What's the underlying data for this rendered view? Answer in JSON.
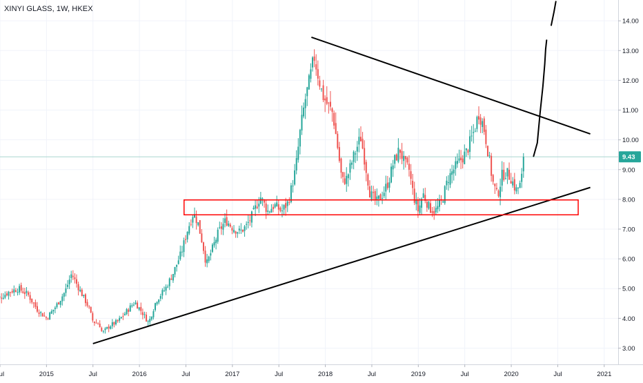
{
  "chart_data": {
    "type": "candlestick",
    "title": "XINYI GLASS, 1W, HKEX",
    "last_price_label": "9.43",
    "colors": {
      "up": "#26a69a",
      "down": "#ef5350",
      "grid": "#f0f3fa",
      "axis_text": "#131722",
      "price_line": "#a8d5cf",
      "price_tag": "#26a69a",
      "trendline": "#000000",
      "zone": "#ff0000"
    },
    "y_axis": {
      "min": 2.5,
      "max": 14.7,
      "ticks": [
        "3.00",
        "4.00",
        "5.00",
        "6.00",
        "7.00",
        "8.00",
        "9.00",
        "10.00",
        "11.00",
        "12.00",
        "13.00",
        "14.00"
      ],
      "tick_values": [
        3,
        4,
        5,
        6,
        7,
        8,
        9,
        10,
        11,
        12,
        13,
        14
      ]
    },
    "x_axis": {
      "min": 2014.5,
      "max": 2021.15,
      "ticks": [
        "Jul",
        "2015",
        "Jul",
        "2016",
        "Jul",
        "2017",
        "Jul",
        "2018",
        "Jul",
        "2019",
        "Jul",
        "2020",
        "Jul",
        "2021"
      ],
      "tick_values": [
        2014.5,
        2015,
        2015.5,
        2016,
        2016.5,
        2017,
        2017.5,
        2018,
        2018.5,
        2019,
        2019.5,
        2020,
        2020.5,
        2021
      ]
    },
    "series": [
      {
        "type": "candles",
        "interval": "1W",
        "close_path": [
          [
            2014.5,
            4.7
          ],
          [
            2014.6,
            4.9
          ],
          [
            2014.7,
            5.0
          ],
          [
            2014.8,
            4.8
          ],
          [
            2014.9,
            4.3
          ],
          [
            2015.0,
            4.0
          ],
          [
            2015.1,
            4.4
          ],
          [
            2015.2,
            4.9
          ],
          [
            2015.27,
            5.5
          ],
          [
            2015.35,
            5.0
          ],
          [
            2015.45,
            4.4
          ],
          [
            2015.5,
            3.9
          ],
          [
            2015.57,
            3.8
          ],
          [
            2015.6,
            3.5
          ],
          [
            2015.68,
            3.75
          ],
          [
            2015.77,
            3.9
          ],
          [
            2015.88,
            4.3
          ],
          [
            2015.95,
            4.55
          ],
          [
            2016.03,
            4.2
          ],
          [
            2016.1,
            3.85
          ],
          [
            2016.18,
            4.6
          ],
          [
            2016.28,
            5.0
          ],
          [
            2016.36,
            5.5
          ],
          [
            2016.45,
            6.2
          ],
          [
            2016.52,
            7.0
          ],
          [
            2016.58,
            7.55
          ],
          [
            2016.63,
            7.2
          ],
          [
            2016.68,
            6.5
          ],
          [
            2016.72,
            5.8
          ],
          [
            2016.78,
            6.3
          ],
          [
            2016.85,
            6.9
          ],
          [
            2016.93,
            7.3
          ],
          [
            2017.0,
            7.05
          ],
          [
            2017.08,
            6.9
          ],
          [
            2017.15,
            7.1
          ],
          [
            2017.22,
            7.5
          ],
          [
            2017.3,
            8.1
          ],
          [
            2017.38,
            7.6
          ],
          [
            2017.45,
            7.8
          ],
          [
            2017.53,
            7.6
          ],
          [
            2017.6,
            7.9
          ],
          [
            2017.68,
            9.0
          ],
          [
            2017.73,
            10.3
          ],
          [
            2017.78,
            11.3
          ],
          [
            2017.83,
            12.0
          ],
          [
            2017.88,
            12.8
          ],
          [
            2017.92,
            12.2
          ],
          [
            2017.97,
            11.5
          ],
          [
            2018.02,
            11.2
          ],
          [
            2018.08,
            10.9
          ],
          [
            2018.13,
            9.8
          ],
          [
            2018.18,
            8.6
          ],
          [
            2018.23,
            8.7
          ],
          [
            2018.3,
            9.4
          ],
          [
            2018.38,
            10.1
          ],
          [
            2018.43,
            9.2
          ],
          [
            2018.48,
            8.2
          ],
          [
            2018.55,
            7.9
          ],
          [
            2018.62,
            8.2
          ],
          [
            2018.68,
            8.6
          ],
          [
            2018.73,
            9.2
          ],
          [
            2018.8,
            9.7
          ],
          [
            2018.85,
            9.2
          ],
          [
            2018.9,
            9.0
          ],
          [
            2018.95,
            8.1
          ],
          [
            2019.0,
            7.6
          ],
          [
            2019.05,
            8.2
          ],
          [
            2019.12,
            7.7
          ],
          [
            2019.18,
            7.6
          ],
          [
            2019.25,
            7.9
          ],
          [
            2019.32,
            8.7
          ],
          [
            2019.38,
            9.0
          ],
          [
            2019.45,
            9.3
          ],
          [
            2019.52,
            9.6
          ],
          [
            2019.6,
            10.3
          ],
          [
            2019.65,
            10.9
          ],
          [
            2019.7,
            10.5
          ],
          [
            2019.74,
            9.8
          ],
          [
            2019.8,
            8.6
          ],
          [
            2019.85,
            8.1
          ],
          [
            2019.9,
            8.8
          ],
          [
            2019.95,
            8.9
          ],
          [
            2020.0,
            8.7
          ],
          [
            2020.05,
            8.3
          ],
          [
            2020.1,
            8.5
          ],
          [
            2020.15,
            9.43
          ]
        ]
      }
    ],
    "annotations": {
      "resistance_line": [
        [
          2017.85,
          13.45
        ],
        [
          2020.85,
          10.2
        ]
      ],
      "support_line": [
        [
          2015.5,
          3.15
        ],
        [
          2020.85,
          8.4
        ]
      ],
      "zone": {
        "x": [
          2016.48,
          2020.72
        ],
        "y": [
          7.48,
          7.98
        ]
      },
      "projection_path": [
        [
          2020.24,
          9.45
        ],
        [
          2020.28,
          9.9
        ],
        [
          2020.31,
          10.9
        ],
        [
          2020.34,
          11.8
        ],
        [
          2020.36,
          12.55
        ],
        [
          2020.37,
          13.05
        ],
        [
          2020.38,
          13.35
        ]
      ],
      "projection_path_top": [
        [
          2020.43,
          13.85
        ],
        [
          2020.46,
          14.3
        ],
        [
          2020.48,
          14.65
        ]
      ]
    }
  }
}
